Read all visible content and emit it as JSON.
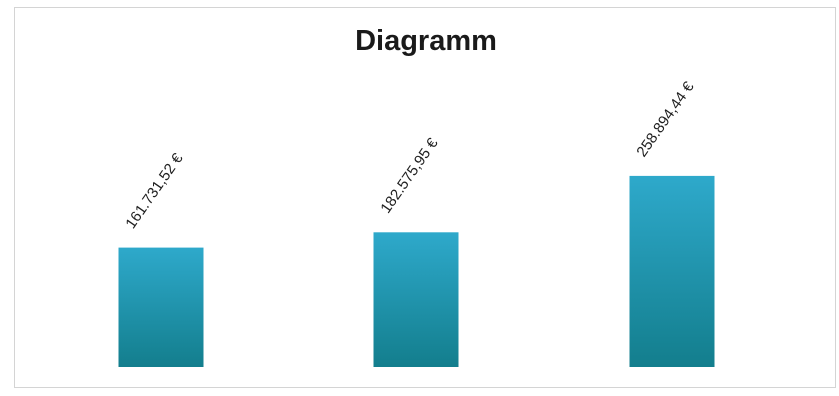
{
  "chart_data": {
    "type": "bar",
    "title": "Diagramm",
    "categories": [
      "",
      "",
      ""
    ],
    "values": [
      161731.52,
      182575.95,
      258894.44
    ],
    "data_labels": [
      "161.731,52 €",
      "182.575,95 €",
      "258.894,44 €"
    ],
    "xlabel": "",
    "ylabel": "",
    "ylim": [
      0,
      370000
    ],
    "grid": false,
    "legend": "none",
    "colors": {
      "bar_top": "#2ea9cb",
      "bar_bottom": "#137e8d"
    }
  }
}
